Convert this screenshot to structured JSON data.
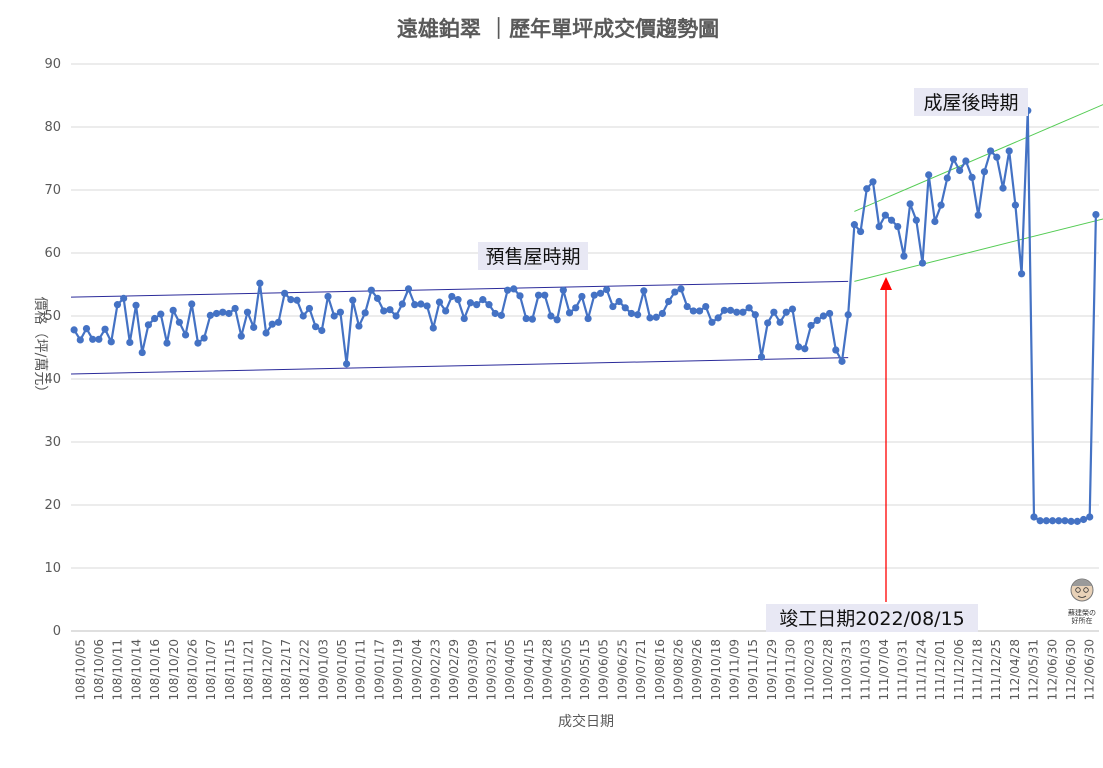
{
  "chart_data": {
    "type": "line",
    "title": "遠雄鉑翠 ｜歷年單坪成交價趨勢圖",
    "xlabel": "成交日期",
    "ylabel": "價格（坪/萬元）",
    "ylim": [
      0,
      90
    ],
    "yticks": [
      0,
      10,
      20,
      30,
      40,
      50,
      60,
      70,
      80,
      90
    ],
    "grid": true,
    "legend": "none",
    "x_tick_labels": [
      "108/10/05",
      "108/10/06",
      "108/10/11",
      "108/10/14",
      "108/10/16",
      "108/10/20",
      "108/10/26",
      "108/11/07",
      "108/11/15",
      "108/11/21",
      "108/12/07",
      "108/12/17",
      "108/12/22",
      "109/01/03",
      "109/01/05",
      "109/01/11",
      "109/01/17",
      "109/01/19",
      "109/02/04",
      "109/02/23",
      "109/02/29",
      "109/03/09",
      "109/03/21",
      "109/04/05",
      "109/04/15",
      "109/04/28",
      "109/05/05",
      "109/05/15",
      "109/06/05",
      "109/06/25",
      "109/07/21",
      "109/08/16",
      "109/08/26",
      "109/09/26",
      "109/10/18",
      "109/11/09",
      "109/11/15",
      "109/11/29",
      "109/11/30",
      "110/02/03",
      "110/02/28",
      "110/03/31",
      "111/01/03",
      "111/07/04",
      "111/10/31",
      "111/11/24",
      "111/12/01",
      "111/12/06",
      "111/12/18",
      "111/12/25",
      "112/04/28",
      "112/05/31",
      "112/06/30",
      "112/06/30",
      "112/06/30"
    ],
    "series": [
      {
        "color": "#4472c4",
        "values": [
          47.8,
          46.2,
          48.0,
          46.3,
          46.3,
          47.9,
          45.9,
          51.8,
          52.8,
          45.8,
          51.7,
          44.2,
          48.6,
          49.6,
          50.3,
          45.7,
          50.9,
          49.0,
          47.0,
          51.9,
          45.7,
          46.5,
          50.1,
          50.4,
          50.6,
          50.4,
          51.2,
          46.8,
          50.6,
          48.2,
          55.2,
          47.3,
          48.7,
          49.0,
          53.6,
          52.6,
          52.5,
          50.0,
          51.2,
          48.3,
          47.7,
          53.1,
          50.0,
          50.6,
          42.4,
          52.5,
          48.4,
          50.5,
          54.1,
          52.8,
          50.8,
          51.0,
          50.0,
          51.9,
          54.3,
          51.8,
          51.9,
          51.6,
          48.1,
          52.2,
          50.8,
          53.1,
          52.6,
          49.6,
          52.1,
          51.8,
          52.6,
          51.8,
          50.4,
          50.1,
          54.1,
          54.3,
          53.2,
          49.6,
          49.5,
          53.3,
          53.3,
          50.0,
          49.4,
          54.1,
          50.5,
          51.3,
          53.1,
          49.6,
          53.3,
          53.6,
          54.2,
          51.5,
          52.3,
          51.3,
          50.4,
          50.2,
          54.0,
          49.7,
          49.8,
          50.4,
          52.3,
          53.8,
          54.3,
          51.5,
          50.8,
          50.8,
          51.5,
          49.0,
          49.7,
          50.9,
          50.9,
          50.6,
          50.6,
          51.3,
          50.2,
          43.5,
          48.9,
          50.6,
          49.0,
          50.6,
          51.1,
          45.1,
          44.8,
          48.5,
          49.3,
          50.0,
          50.4,
          44.6,
          42.8,
          50.2,
          64.5,
          63.4,
          70.2,
          71.3,
          64.2,
          66.0,
          65.2,
          64.2,
          59.5,
          67.8,
          65.2,
          58.4,
          72.4,
          65.0,
          67.6,
          71.9,
          74.9,
          73.1,
          74.6,
          72.0,
          66.0,
          72.9,
          76.2,
          75.2,
          70.3,
          76.2,
          67.6,
          56.7,
          82.6,
          18.1,
          17.5,
          17.5,
          17.5,
          17.5,
          17.5,
          17.4,
          17.4,
          17.7,
          18.1,
          66.1
        ]
      }
    ],
    "trendlines": [
      {
        "color": "#2b2b9a",
        "from": [
          0,
          53.0
        ],
        "to": [
          125,
          55.5
        ]
      },
      {
        "color": "#2b2b9a",
        "from": [
          0,
          40.8
        ],
        "to": [
          125,
          43.4
        ]
      },
      {
        "color": "#55cc55",
        "from": [
          126,
          66.6
        ],
        "to": [
          171,
          85.6
        ]
      },
      {
        "color": "#55cc55",
        "from": [
          126,
          55.5
        ],
        "to": [
          171,
          66.6
        ]
      }
    ]
  },
  "annotations": {
    "presale": "預售屋時期",
    "postcompletion": "成屋後時期",
    "completion": "竣工日期2022/08/15"
  },
  "logo_text": "蘇建榮の好所在"
}
